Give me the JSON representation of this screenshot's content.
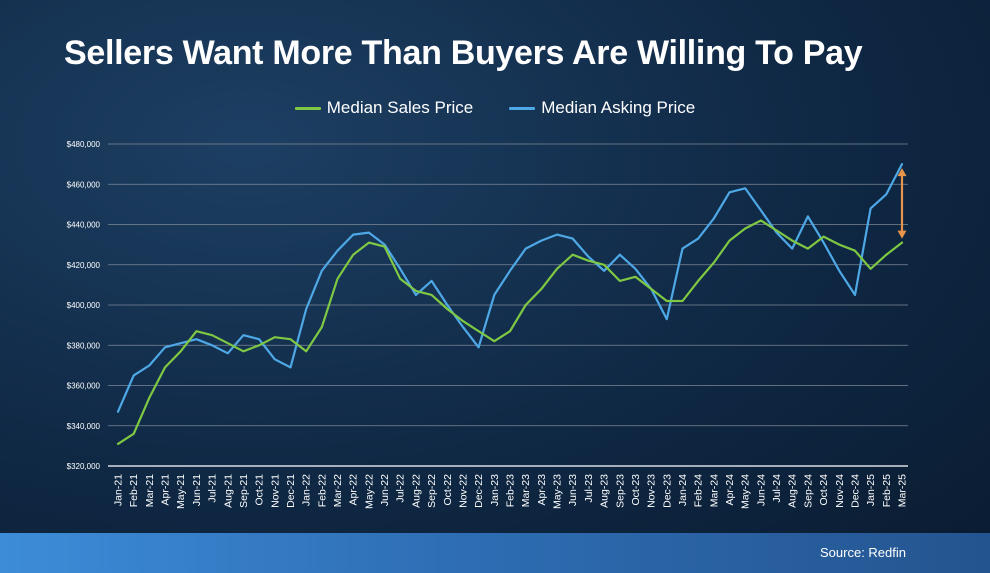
{
  "header": {
    "title": "Sellers Want More Than Buyers Are Willing To Pay"
  },
  "footer": {
    "source": "Source: Redfin"
  },
  "colors": {
    "sales": "#7fc843",
    "asking": "#4ea8e6",
    "arrow": "#e8944a",
    "grid": "#7d8896"
  },
  "chart_data": {
    "type": "line",
    "title": "Sellers Want More Than Buyers Are Willing To Pay",
    "xlabel": "",
    "ylabel": "",
    "ylim": [
      320000,
      480000
    ],
    "yticks": [
      320000,
      340000,
      360000,
      380000,
      400000,
      420000,
      440000,
      460000,
      480000
    ],
    "ytick_labels": [
      "$320,000",
      "$340,000",
      "$360,000",
      "$380,000",
      "$400,000",
      "$420,000",
      "$440,000",
      "$460,000",
      "$480,000"
    ],
    "grid": true,
    "legend_position": "top",
    "categories": [
      "Jan-21",
      "Feb-21",
      "Mar-21",
      "Apr-21",
      "May-21",
      "Jun-21",
      "Jul-21",
      "Aug-21",
      "Sep-21",
      "Oct-21",
      "Nov-21",
      "Dec-21",
      "Jan-22",
      "Feb-22",
      "Mar-22",
      "Apr-22",
      "May-22",
      "Jun-22",
      "Jul-22",
      "Aug-22",
      "Sep-22",
      "Oct-22",
      "Nov-22",
      "Dec-22",
      "Jan-23",
      "Feb-23",
      "Mar-23",
      "Apr-23",
      "May-23",
      "Jun-23",
      "Jul-23",
      "Aug-23",
      "Sep-23",
      "Oct-23",
      "Nov-23",
      "Dec-23",
      "Jan-24",
      "Feb-24",
      "Mar-24",
      "Apr-24",
      "May-24",
      "Jun-24",
      "Jul-24",
      "Aug-24",
      "Sep-24",
      "Oct-24",
      "Nov-24",
      "Dec-24",
      "Jan-25",
      "Feb-25",
      "Mar-25"
    ],
    "series": [
      {
        "name": "Median Sales Price",
        "color": "#7fc843",
        "values": [
          331000,
          336000,
          354000,
          369000,
          377000,
          387000,
          385000,
          381000,
          377000,
          380000,
          384000,
          383000,
          377000,
          389000,
          413000,
          425000,
          431000,
          429000,
          413000,
          407000,
          405000,
          398000,
          392000,
          387000,
          382000,
          387000,
          400000,
          408000,
          418000,
          425000,
          422000,
          420000,
          412000,
          414000,
          408000,
          402000,
          402000,
          412000,
          421000,
          432000,
          438000,
          442000,
          437000,
          432000,
          428000,
          434000,
          430000,
          427000,
          418000,
          425000,
          431000
        ]
      },
      {
        "name": "Median Asking Price",
        "color": "#4ea8e6",
        "values": [
          347000,
          365000,
          370000,
          379000,
          381000,
          383000,
          380000,
          376000,
          385000,
          383000,
          373000,
          369000,
          398000,
          417000,
          427000,
          435000,
          436000,
          430000,
          418000,
          405000,
          412000,
          400000,
          389000,
          379000,
          405000,
          417000,
          428000,
          432000,
          435000,
          433000,
          424000,
          417000,
          425000,
          418000,
          408000,
          393000,
          428000,
          433000,
          443000,
          456000,
          458000,
          447000,
          436000,
          428000,
          444000,
          431000,
          417000,
          405000,
          448000,
          455000,
          470000
        ]
      }
    ]
  }
}
